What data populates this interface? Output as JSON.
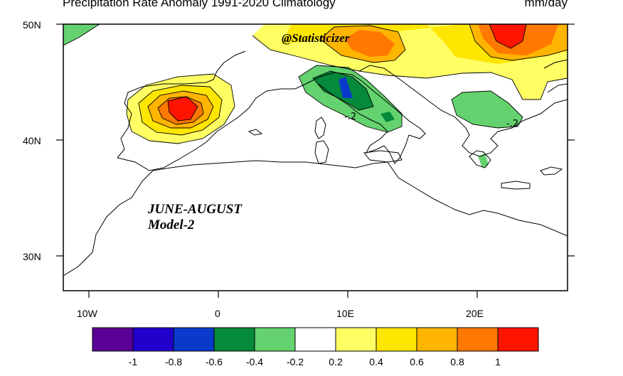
{
  "title": {
    "left": "Precipitation Rate Anomaly  1991-2020 Climatology",
    "right": "mm/day"
  },
  "watermark": "@Statisticizer",
  "season": {
    "line1": "JUNE-AUGUST",
    "line2": "Model-2"
  },
  "axes": {
    "lat_ticks": [
      "50N",
      "40N",
      "30N"
    ],
    "lon_ticks": [
      "10W",
      "0",
      "10E",
      "20E"
    ]
  },
  "contour_labels": [
    "-.2",
    "-.2"
  ],
  "colorbar": {
    "colors": [
      "#5a0096",
      "#2100cc",
      "#0a3acc",
      "#058a3b",
      "#64d26e",
      "#ffffff",
      "#ffff64",
      "#ffe600",
      "#ffb400",
      "#ff7800",
      "#ff1400"
    ],
    "labels": [
      "-1",
      "-0.8",
      "-0.6",
      "-0.4",
      "-0.2",
      "0.2",
      "0.4",
      "0.6",
      "0.8",
      "1"
    ]
  }
}
